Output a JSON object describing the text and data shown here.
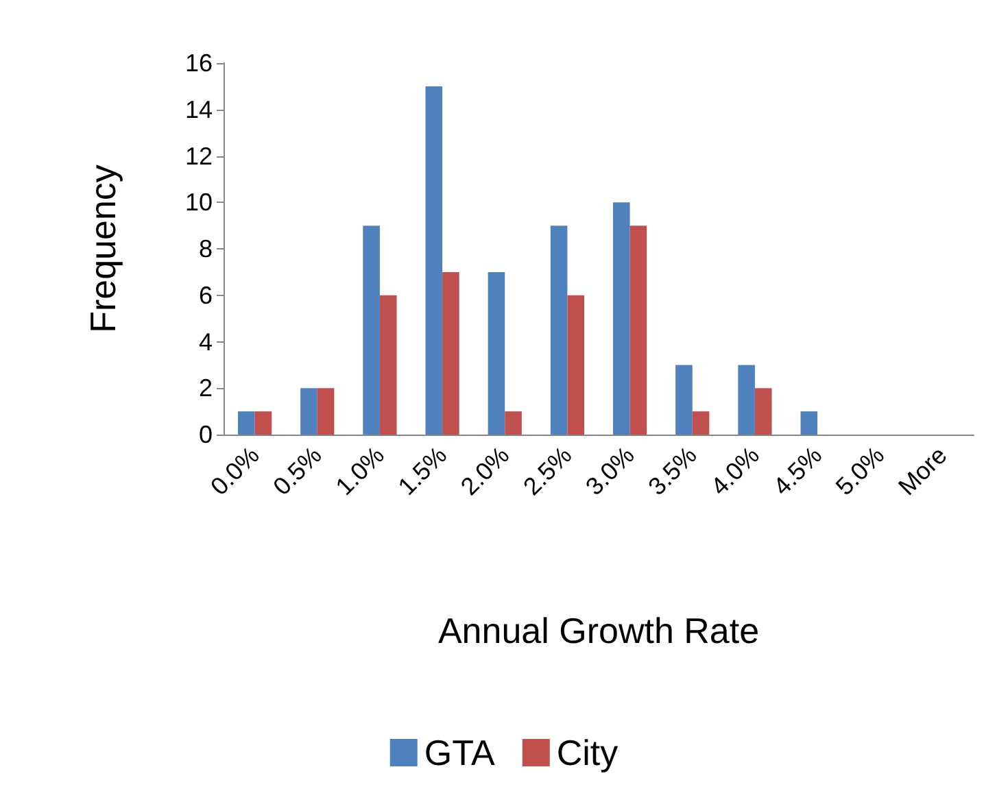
{
  "chart_data": {
    "type": "bar",
    "xlabel": "Annual Growth Rate",
    "ylabel": "Frequency",
    "categories": [
      "0.0%",
      "0.5%",
      "1.0%",
      "1.5%",
      "2.0%",
      "2.5%",
      "3.0%",
      "3.5%",
      "4.0%",
      "4.5%",
      "5.0%",
      "More"
    ],
    "series": [
      {
        "name": "GTA",
        "color": "#4f81bd",
        "values": [
          1,
          2,
          9,
          15,
          7,
          9,
          10,
          3,
          3,
          1,
          0,
          0
        ]
      },
      {
        "name": "City",
        "color": "#c0504d",
        "values": [
          1,
          2,
          6,
          7,
          1,
          6,
          9,
          1,
          2,
          0,
          0,
          0
        ]
      }
    ],
    "ylim": [
      0,
      16
    ],
    "yticks": [
      0,
      2,
      4,
      6,
      8,
      10,
      12,
      14,
      16
    ],
    "grid": false,
    "legend": "bottom"
  }
}
